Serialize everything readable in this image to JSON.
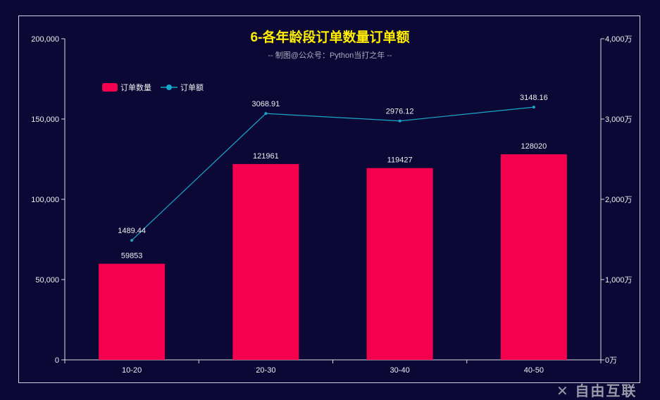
{
  "chart_data": {
    "type": "bar+line",
    "title": "6-各年龄段订单数量订单额",
    "subtitle": "-- 制图@公众号：Python当打之年 --",
    "categories": [
      "10-20",
      "20-30",
      "30-40",
      "40-50"
    ],
    "series": [
      {
        "name": "订单数量",
        "type": "bar",
        "axis": "left",
        "color": "#f5004f",
        "values": [
          59853,
          121961,
          119427,
          128020
        ]
      },
      {
        "name": "订单额",
        "type": "line",
        "axis": "right",
        "color": "#1aa6c8",
        "values": [
          1489.44,
          3068.91,
          2976.12,
          3148.16
        ]
      }
    ],
    "y_left": {
      "range": [
        0,
        200000
      ],
      "ticks": [
        "0",
        "50,000",
        "100,000",
        "150,000",
        "200,000"
      ]
    },
    "y_right": {
      "range": [
        0,
        4000
      ],
      "ticks": [
        "0万",
        "1,000万",
        "2,000万",
        "3,000万",
        "4,000万"
      ]
    },
    "legend_placement": "top-left",
    "grid": false
  },
  "watermark": "自由互联"
}
